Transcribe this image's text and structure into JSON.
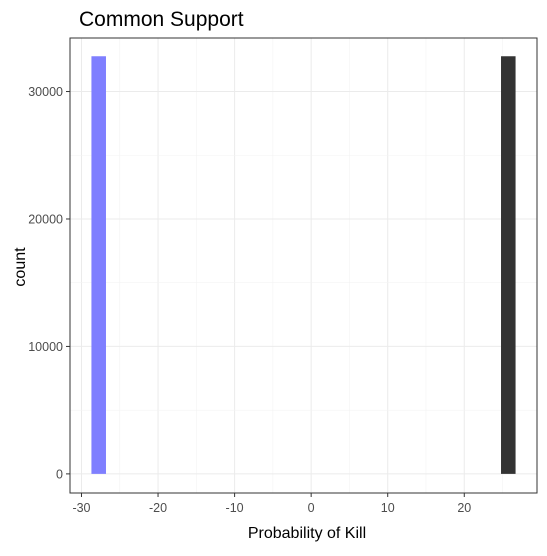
{
  "chart_data": {
    "type": "bar",
    "title": "Common Support",
    "xlabel": "Probability of Kill",
    "ylabel": "count",
    "xlim": [
      -31.5,
      29.5
    ],
    "ylim": [
      -1500,
      34200
    ],
    "x_ticks": [
      -30,
      -20,
      -10,
      0,
      10,
      20
    ],
    "y_ticks": [
      0,
      10000,
      20000,
      30000
    ],
    "x_tick_labels": [
      "-30",
      "-20",
      "-10",
      "0",
      "10",
      "20"
    ],
    "y_tick_labels": [
      "0",
      "10000",
      "20000",
      "30000"
    ],
    "grid": true,
    "legend": "none",
    "series": [
      {
        "color": "#7f7fff",
        "bars": [
          {
            "x0": -28.7,
            "x1": -26.8,
            "count": 32768
          }
        ]
      },
      {
        "color": "#333333",
        "bars": [
          {
            "x0": 24.8,
            "x1": 26.7,
            "count": 32768
          }
        ]
      }
    ]
  }
}
